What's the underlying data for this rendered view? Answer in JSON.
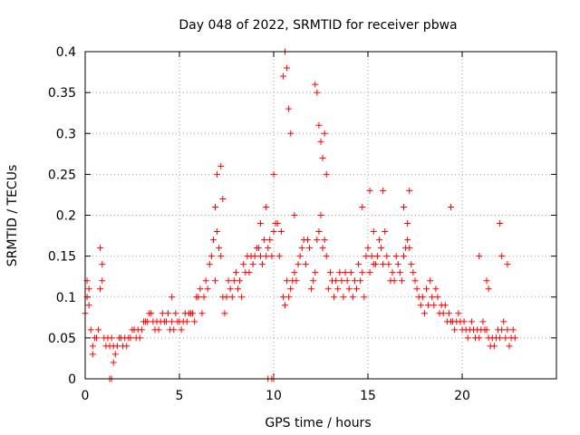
{
  "chart_data": {
    "type": "scatter",
    "title": "Day 048 of 2022, SRMTID for receiver pbwa",
    "xlabel": "GPS time / hours",
    "ylabel": "SRMTID / TECUs",
    "xlim": [
      0,
      25
    ],
    "ylim": [
      0,
      0.4
    ],
    "x_ticks": [
      0,
      5,
      10,
      15,
      20
    ],
    "x_tick_labels": [
      "0",
      "5",
      "10",
      "15",
      "20"
    ],
    "y_ticks": [
      0,
      0.05,
      0.1,
      0.15,
      0.2,
      0.25,
      0.3,
      0.35,
      0.4
    ],
    "y_tick_labels": [
      "0",
      "0.05",
      "0.1",
      "0.15",
      "0.2",
      "0.25",
      "0.3",
      "0.35",
      "0.4"
    ],
    "grid": true,
    "marker": "+",
    "color": "#ff0000",
    "series": [
      {
        "name": "SRMTID",
        "x": [
          0.0,
          0.1,
          0.2,
          0.3,
          0.4,
          0.5,
          0.6,
          0.7,
          0.8,
          0.9,
          1.0,
          1.1,
          1.2,
          1.3,
          1.4,
          1.5,
          1.6,
          1.7,
          1.8,
          1.9,
          2.0,
          2.1,
          2.2,
          2.3,
          2.4,
          2.5,
          2.6,
          2.7,
          2.8,
          2.9,
          3.0,
          3.1,
          3.2,
          3.3,
          3.4,
          3.5,
          3.6,
          3.7,
          3.8,
          3.9,
          4.0,
          4.1,
          4.2,
          4.3,
          4.4,
          4.5,
          4.6,
          4.7,
          4.8,
          4.9,
          5.0,
          5.1,
          5.2,
          5.3,
          5.4,
          5.5,
          5.6,
          5.7,
          5.8,
          5.9,
          6.0,
          6.1,
          6.2,
          6.3,
          6.4,
          6.5,
          6.6,
          6.7,
          6.8,
          6.9,
          7.0,
          7.1,
          7.2,
          7.3,
          7.4,
          7.5,
          7.6,
          7.7,
          7.8,
          7.9,
          8.0,
          8.1,
          8.2,
          8.3,
          8.4,
          8.5,
          8.6,
          8.7,
          8.8,
          8.9,
          9.0,
          9.1,
          9.2,
          9.3,
          9.4,
          9.5,
          9.6,
          9.7,
          9.8,
          9.9,
          10.0,
          10.1,
          10.2,
          10.3,
          10.4,
          10.5,
          10.6,
          10.7,
          10.8,
          10.9,
          11.0,
          11.1,
          11.2,
          11.3,
          11.4,
          11.5,
          11.6,
          11.7,
          11.8,
          11.9,
          12.0,
          12.1,
          12.2,
          12.3,
          12.4,
          12.5,
          12.6,
          12.7,
          12.8,
          12.9,
          13.0,
          13.1,
          13.2,
          13.3,
          13.4,
          13.5,
          13.6,
          13.7,
          13.8,
          13.9,
          14.0,
          14.1,
          14.2,
          14.3,
          14.4,
          14.5,
          14.6,
          14.7,
          14.8,
          14.9,
          15.0,
          15.1,
          15.2,
          15.3,
          15.4,
          15.5,
          15.6,
          15.7,
          15.8,
          15.9,
          16.0,
          16.1,
          16.2,
          16.3,
          16.4,
          16.5,
          16.6,
          16.7,
          16.8,
          16.9,
          17.0,
          17.1,
          17.2,
          17.3,
          17.4,
          17.5,
          17.6,
          17.7,
          17.8,
          17.9,
          18.0,
          18.1,
          18.2,
          18.3,
          18.4,
          18.5,
          18.6,
          18.7,
          18.8,
          18.9,
          19.0,
          19.1,
          19.2,
          19.3,
          19.4,
          19.5,
          19.6,
          19.7,
          19.8,
          19.9,
          20.0,
          20.1,
          20.2,
          20.3,
          20.4,
          20.5,
          20.6,
          20.7,
          20.8,
          20.9,
          21.0,
          21.1,
          21.2,
          21.3,
          21.4,
          21.5,
          21.6,
          21.7,
          21.8,
          21.9,
          22.0,
          22.1,
          22.2,
          22.3,
          22.4,
          22.5,
          22.6,
          22.7,
          22.8,
          0.1,
          0.2,
          0.4,
          0.8,
          0.9,
          1.5,
          4.6,
          6.9,
          7.0,
          7.2,
          7.3,
          9.3,
          9.6,
          10.0,
          10.5,
          10.6,
          10.7,
          10.8,
          10.9,
          11.1,
          12.2,
          12.3,
          12.4,
          12.5,
          12.6,
          12.7,
          12.8,
          14.7,
          15.1,
          15.3,
          15.8,
          16.9,
          17.1,
          17.2,
          19.4,
          20.9,
          21.3,
          21.4,
          22.0,
          22.1,
          22.4,
          1.3,
          1.4,
          9.7,
          9.9,
          10.0
        ],
        "y": [
          0.08,
          0.1,
          0.09,
          0.06,
          0.04,
          0.05,
          0.05,
          0.06,
          0.11,
          0.12,
          0.05,
          0.04,
          0.05,
          0.04,
          0.05,
          0.04,
          0.03,
          0.04,
          0.05,
          0.05,
          0.04,
          0.05,
          0.04,
          0.05,
          0.05,
          0.06,
          0.06,
          0.05,
          0.06,
          0.05,
          0.06,
          0.07,
          0.07,
          0.07,
          0.08,
          0.08,
          0.07,
          0.06,
          0.07,
          0.06,
          0.07,
          0.08,
          0.07,
          0.07,
          0.08,
          0.06,
          0.07,
          0.06,
          0.08,
          0.07,
          0.07,
          0.06,
          0.07,
          0.08,
          0.07,
          0.08,
          0.08,
          0.08,
          0.07,
          0.1,
          0.1,
          0.11,
          0.08,
          0.1,
          0.12,
          0.11,
          0.14,
          0.15,
          0.17,
          0.12,
          0.18,
          0.16,
          0.15,
          0.1,
          0.08,
          0.1,
          0.12,
          0.11,
          0.1,
          0.12,
          0.13,
          0.11,
          0.12,
          0.1,
          0.14,
          0.13,
          0.15,
          0.13,
          0.15,
          0.14,
          0.15,
          0.16,
          0.16,
          0.15,
          0.14,
          0.17,
          0.15,
          0.16,
          0.17,
          0.15,
          0.18,
          0.19,
          0.19,
          0.15,
          0.18,
          0.1,
          0.09,
          0.12,
          0.1,
          0.11,
          0.12,
          0.13,
          0.12,
          0.14,
          0.15,
          0.16,
          0.17,
          0.14,
          0.17,
          0.16,
          0.11,
          0.12,
          0.13,
          0.17,
          0.18,
          0.2,
          0.16,
          0.17,
          0.15,
          0.11,
          0.13,
          0.12,
          0.1,
          0.12,
          0.11,
          0.13,
          0.12,
          0.1,
          0.13,
          0.12,
          0.11,
          0.13,
          0.1,
          0.12,
          0.11,
          0.14,
          0.12,
          0.13,
          0.1,
          0.15,
          0.16,
          0.13,
          0.15,
          0.14,
          0.14,
          0.15,
          0.17,
          0.16,
          0.14,
          0.18,
          0.15,
          0.14,
          0.12,
          0.13,
          0.12,
          0.15,
          0.14,
          0.13,
          0.12,
          0.15,
          0.16,
          0.17,
          0.16,
          0.14,
          0.13,
          0.12,
          0.11,
          0.1,
          0.09,
          0.1,
          0.08,
          0.11,
          0.09,
          0.12,
          0.1,
          0.09,
          0.11,
          0.1,
          0.08,
          0.09,
          0.08,
          0.09,
          0.07,
          0.08,
          0.07,
          0.07,
          0.06,
          0.07,
          0.08,
          0.07,
          0.06,
          0.07,
          0.06,
          0.05,
          0.06,
          0.07,
          0.06,
          0.05,
          0.06,
          0.05,
          0.06,
          0.07,
          0.06,
          0.06,
          0.05,
          0.04,
          0.05,
          0.04,
          0.05,
          0.06,
          0.05,
          0.06,
          0.07,
          0.05,
          0.06,
          0.04,
          0.05,
          0.06,
          0.05,
          0.12,
          0.11,
          0.03,
          0.16,
          0.14,
          0.02,
          0.1,
          0.21,
          0.25,
          0.26,
          0.22,
          0.19,
          0.21,
          0.25,
          0.37,
          0.4,
          0.38,
          0.33,
          0.3,
          0.2,
          0.36,
          0.35,
          0.31,
          0.29,
          0.27,
          0.3,
          0.25,
          0.21,
          0.23,
          0.18,
          0.23,
          0.21,
          0.19,
          0.23,
          0.21,
          0.15,
          0.12,
          0.11,
          0.19,
          0.15,
          0.14,
          0.0,
          0.0,
          0.0,
          0.0,
          0.0
        ]
      }
    ]
  }
}
